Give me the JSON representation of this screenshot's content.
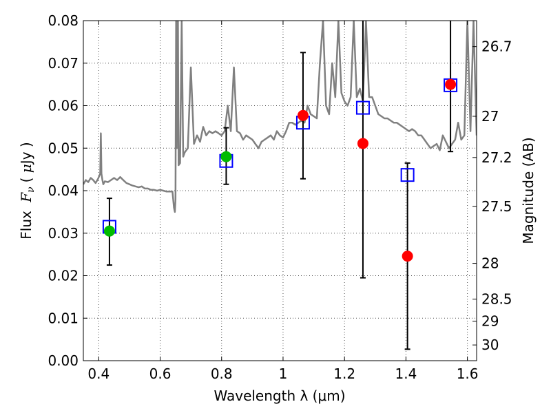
{
  "chart_data": {
    "type": "scatter",
    "xlabel": "Wavelength  λ (μm)",
    "ylabel": "Flux  Fν  ( μJy )",
    "ylabel_right": "Magnitude (AB)",
    "xlim": [
      0.35,
      1.63
    ],
    "ylim": [
      0.0,
      0.08
    ],
    "grid": true,
    "x_ticks": [
      {
        "value": 0.4,
        "label": "0.4"
      },
      {
        "value": 0.6,
        "label": "0.6"
      },
      {
        "value": 0.8,
        "label": "0.8"
      },
      {
        "value": 1.0,
        "label": "1"
      },
      {
        "value": 1.2,
        "label": "1.2"
      },
      {
        "value": 1.4,
        "label": "1.4"
      },
      {
        "value": 1.6,
        "label": "1.6"
      }
    ],
    "y_ticks": [
      {
        "value": 0.0,
        "label": "0.00"
      },
      {
        "value": 0.01,
        "label": "0.01"
      },
      {
        "value": 0.02,
        "label": "0.02"
      },
      {
        "value": 0.03,
        "label": "0.03"
      },
      {
        "value": 0.04,
        "label": "0.04"
      },
      {
        "value": 0.05,
        "label": "0.05"
      },
      {
        "value": 0.06,
        "label": "0.06"
      },
      {
        "value": 0.07,
        "label": "0.07"
      },
      {
        "value": 0.08,
        "label": "0.08"
      }
    ],
    "right_ticks": [
      {
        "flux": 0.0739,
        "label": "26.7"
      },
      {
        "flux": 0.0575,
        "label": "27"
      },
      {
        "flux": 0.0478,
        "label": "27.2"
      },
      {
        "flux": 0.0363,
        "label": "27.5"
      },
      {
        "flux": 0.0229,
        "label": "28"
      },
      {
        "flux": 0.0145,
        "label": "28.5"
      },
      {
        "flux": 0.0093,
        "label": "29"
      },
      {
        "flux": 0.0037,
        "label": "30"
      }
    ],
    "series": [
      {
        "kind": "model_spectrum",
        "color": "#808080",
        "x": [
          0.35,
          0.358,
          0.366,
          0.374,
          0.382,
          0.39,
          0.398,
          0.405,
          0.407,
          0.409,
          0.412,
          0.415,
          0.42,
          0.43,
          0.44,
          0.45,
          0.46,
          0.47,
          0.48,
          0.49,
          0.5,
          0.51,
          0.52,
          0.53,
          0.54,
          0.55,
          0.56,
          0.57,
          0.58,
          0.59,
          0.6,
          0.61,
          0.62,
          0.63,
          0.64,
          0.645,
          0.648,
          0.65,
          0.652,
          0.654,
          0.656,
          0.658,
          0.66,
          0.665,
          0.67,
          0.675,
          0.68,
          0.69,
          0.7,
          0.71,
          0.72,
          0.73,
          0.74,
          0.75,
          0.76,
          0.77,
          0.78,
          0.79,
          0.8,
          0.81,
          0.82,
          0.83,
          0.84,
          0.85,
          0.86,
          0.87,
          0.88,
          0.89,
          0.9,
          0.91,
          0.92,
          0.93,
          0.94,
          0.95,
          0.96,
          0.97,
          0.98,
          0.99,
          1.0,
          1.01,
          1.02,
          1.03,
          1.04,
          1.05,
          1.06,
          1.07,
          1.08,
          1.09,
          1.1,
          1.11,
          1.12,
          1.13,
          1.14,
          1.15,
          1.16,
          1.17,
          1.18,
          1.19,
          1.2,
          1.21,
          1.22,
          1.23,
          1.24,
          1.25,
          1.26,
          1.27,
          1.28,
          1.29,
          1.3,
          1.31,
          1.32,
          1.33,
          1.34,
          1.35,
          1.36,
          1.37,
          1.38,
          1.39,
          1.4,
          1.41,
          1.42,
          1.43,
          1.44,
          1.45,
          1.46,
          1.47,
          1.48,
          1.49,
          1.5,
          1.51,
          1.52,
          1.53,
          1.54,
          1.55,
          1.56,
          1.57,
          1.58,
          1.59,
          1.6,
          1.61,
          1.62,
          1.63
        ],
        "y": [
          0.0415,
          0.0425,
          0.042,
          0.043,
          0.0425,
          0.0418,
          0.0428,
          0.044,
          0.0535,
          0.044,
          0.0425,
          0.0415,
          0.0422,
          0.042,
          0.0425,
          0.043,
          0.0425,
          0.0432,
          0.0425,
          0.0418,
          0.0415,
          0.0412,
          0.041,
          0.0408,
          0.041,
          0.0405,
          0.0405,
          0.0402,
          0.0402,
          0.04,
          0.0402,
          0.04,
          0.0398,
          0.0398,
          0.0398,
          0.036,
          0.035,
          0.038,
          0.08,
          0.05,
          0.08,
          0.08,
          0.046,
          0.0465,
          0.08,
          0.048,
          0.049,
          0.05,
          0.069,
          0.051,
          0.053,
          0.0515,
          0.055,
          0.053,
          0.054,
          0.0535,
          0.054,
          0.0535,
          0.053,
          0.054,
          0.06,
          0.054,
          0.069,
          0.054,
          0.0535,
          0.052,
          0.053,
          0.0525,
          0.052,
          0.051,
          0.05,
          0.0515,
          0.052,
          0.0525,
          0.053,
          0.052,
          0.054,
          0.053,
          0.0525,
          0.054,
          0.056,
          0.056,
          0.0555,
          0.056,
          0.0565,
          0.056,
          0.06,
          0.058,
          0.0575,
          0.057,
          0.07,
          0.08,
          0.06,
          0.058,
          0.07,
          0.062,
          0.08,
          0.063,
          0.061,
          0.06,
          0.062,
          0.08,
          0.062,
          0.064,
          0.061,
          0.08,
          0.062,
          0.062,
          0.06,
          0.058,
          0.0575,
          0.057,
          0.057,
          0.0565,
          0.056,
          0.056,
          0.0555,
          0.055,
          0.0545,
          0.054,
          0.0545,
          0.054,
          0.053,
          0.053,
          0.052,
          0.051,
          0.05,
          0.0505,
          0.051,
          0.0495,
          0.053,
          0.0515,
          0.05,
          0.051,
          0.052,
          0.056,
          0.052,
          0.053,
          0.08,
          0.054,
          0.08,
          0.053
        ]
      },
      {
        "kind": "measured_flux_green",
        "color": "#00bb00",
        "x": [
          0.435,
          0.815
        ],
        "y": [
          0.0305,
          0.048
        ]
      },
      {
        "kind": "measured_flux_red",
        "color": "#ff0000",
        "x": [
          1.065,
          1.26,
          1.405,
          1.545
        ],
        "y": [
          0.0577,
          0.0511,
          0.0246,
          0.065
        ]
      },
      {
        "kind": "model_flux_boxes",
        "color": "#0000ff",
        "x": [
          0.435,
          0.815,
          1.065,
          1.26,
          1.405,
          1.545
        ],
        "y": [
          0.0315,
          0.047,
          0.056,
          0.0595,
          0.0437,
          0.0648
        ]
      },
      {
        "kind": "error_bars",
        "color": "#000000",
        "x": [
          0.435,
          0.815,
          1.065,
          1.26,
          1.405,
          1.545
        ],
        "low": [
          0.0225,
          0.0415,
          0.0428,
          0.0195,
          0.0027,
          0.0492
        ],
        "high": [
          0.0382,
          0.0548,
          0.0725,
          0.08,
          0.0465,
          0.08
        ]
      }
    ]
  },
  "colors": {
    "spectrum": "#808080",
    "green": "#00bb00",
    "red": "#ff0000",
    "blue": "#0000ff",
    "axis": "#000000",
    "grid": "#000000"
  }
}
